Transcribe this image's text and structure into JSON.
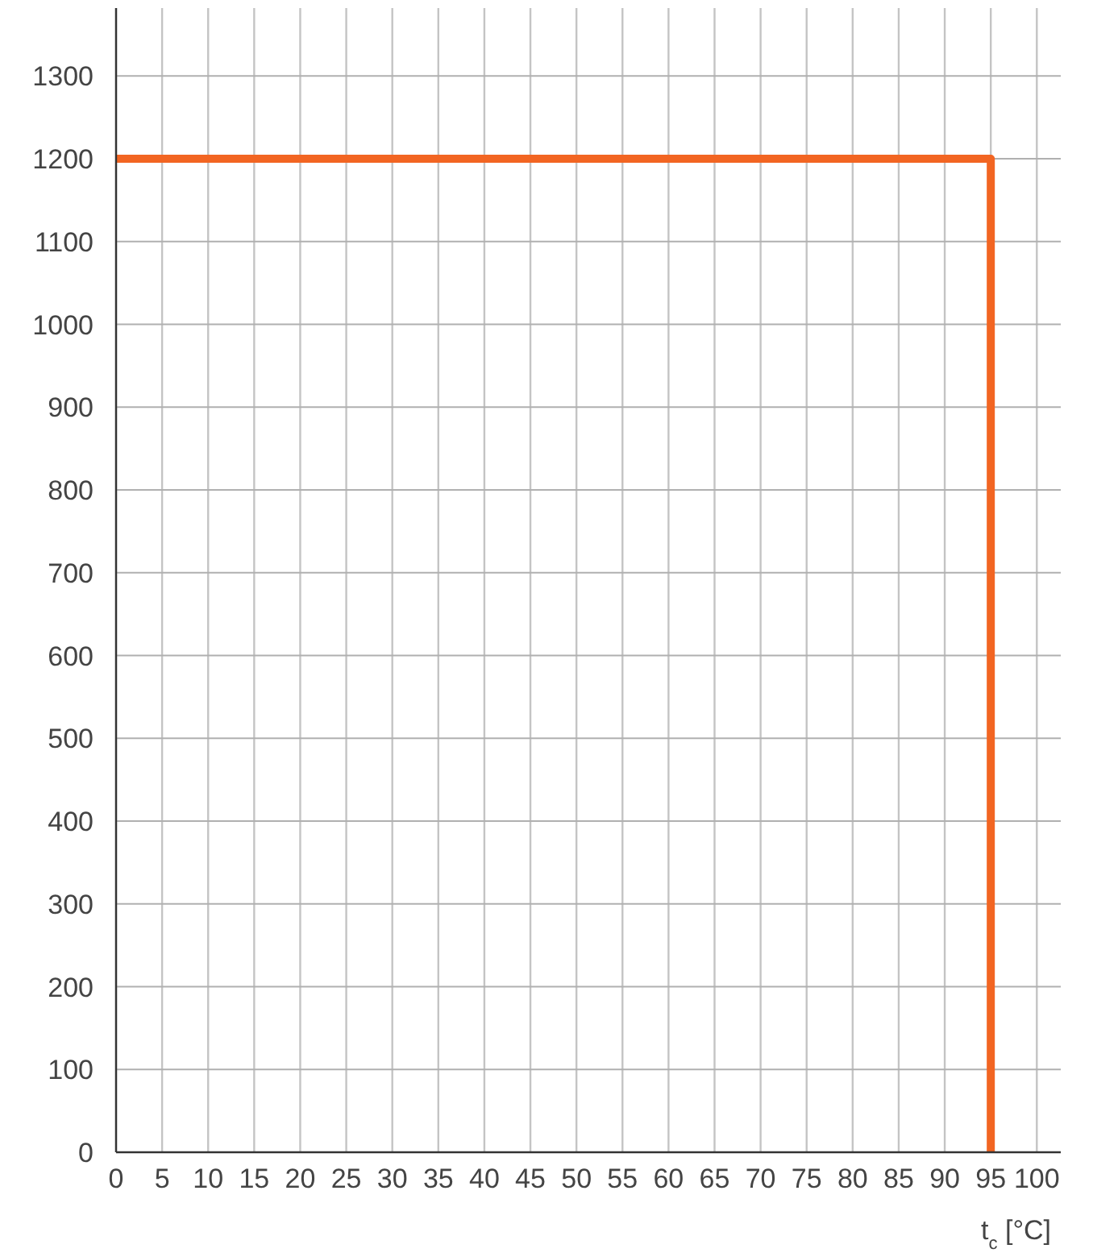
{
  "chart_data": {
    "type": "step",
    "xlabel": "t$_{c}$ [°C]",
    "xlim": [
      0,
      102.6
    ],
    "xticks": [
      0,
      5,
      10,
      15,
      20,
      25,
      30,
      35,
      40,
      45,
      50,
      55,
      60,
      65,
      70,
      75,
      80,
      85,
      90,
      95,
      100
    ],
    "ylim": [
      0,
      1382
    ],
    "yticks": [
      0,
      100,
      200,
      300,
      400,
      500,
      600,
      700,
      800,
      900,
      1000,
      1100,
      1200,
      1300
    ],
    "grid": true,
    "marker": "none",
    "line_style": "solid",
    "series": [
      {
        "color": "#f26522",
        "x": [
          0,
          95
        ],
        "values": [
          1200,
          0
        ]
      }
    ]
  }
}
